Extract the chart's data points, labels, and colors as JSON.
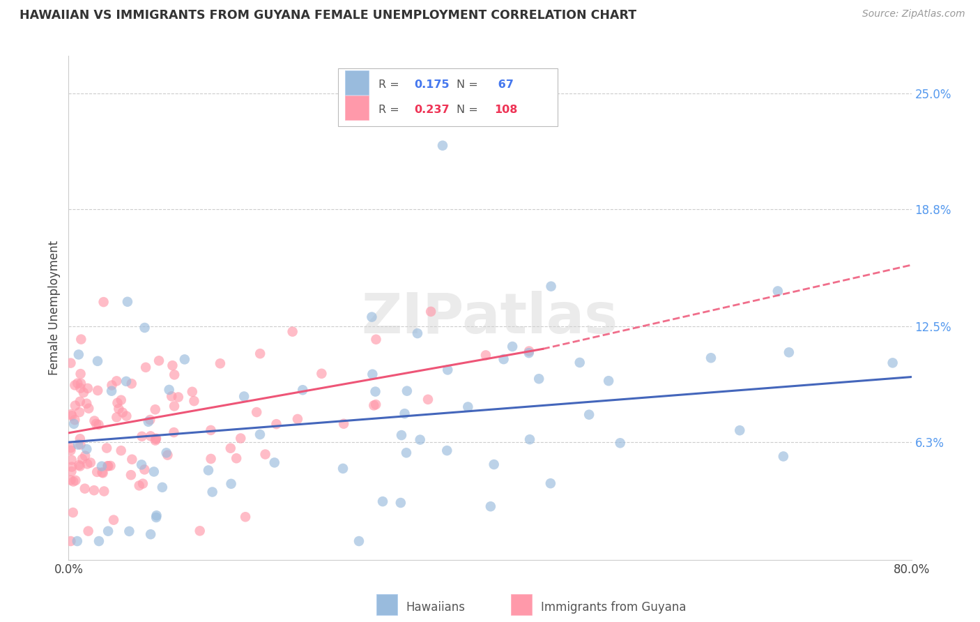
{
  "title": "HAWAIIAN VS IMMIGRANTS FROM GUYANA FEMALE UNEMPLOYMENT CORRELATION CHART",
  "source": "Source: ZipAtlas.com",
  "ylabel": "Female Unemployment",
  "right_yticks": [
    "25.0%",
    "18.8%",
    "12.5%",
    "6.3%"
  ],
  "right_ytick_vals": [
    0.25,
    0.188,
    0.125,
    0.063
  ],
  "legend_blue_r": "0.175",
  "legend_blue_n": "67",
  "legend_pink_r": "0.237",
  "legend_pink_n": "108",
  "legend_blue_label": "Hawaiians",
  "legend_pink_label": "Immigrants from Guyana",
  "blue_color": "#99BBDD",
  "pink_color": "#FF99AA",
  "blue_line_color": "#4466BB",
  "pink_line_color": "#EE5577",
  "watermark": "ZIPatlas",
  "xlim": [
    0.0,
    0.8
  ],
  "ylim": [
    0.0,
    0.27
  ],
  "blue_line_x0": 0.0,
  "blue_line_y0": 0.063,
  "blue_line_x1": 0.8,
  "blue_line_y1": 0.098,
  "pink_line_x0": 0.0,
  "pink_line_y0": 0.068,
  "pink_line_x1": 0.45,
  "pink_line_y1": 0.113,
  "pink_line_dash_x1": 0.8,
  "pink_line_dash_y1": 0.158
}
